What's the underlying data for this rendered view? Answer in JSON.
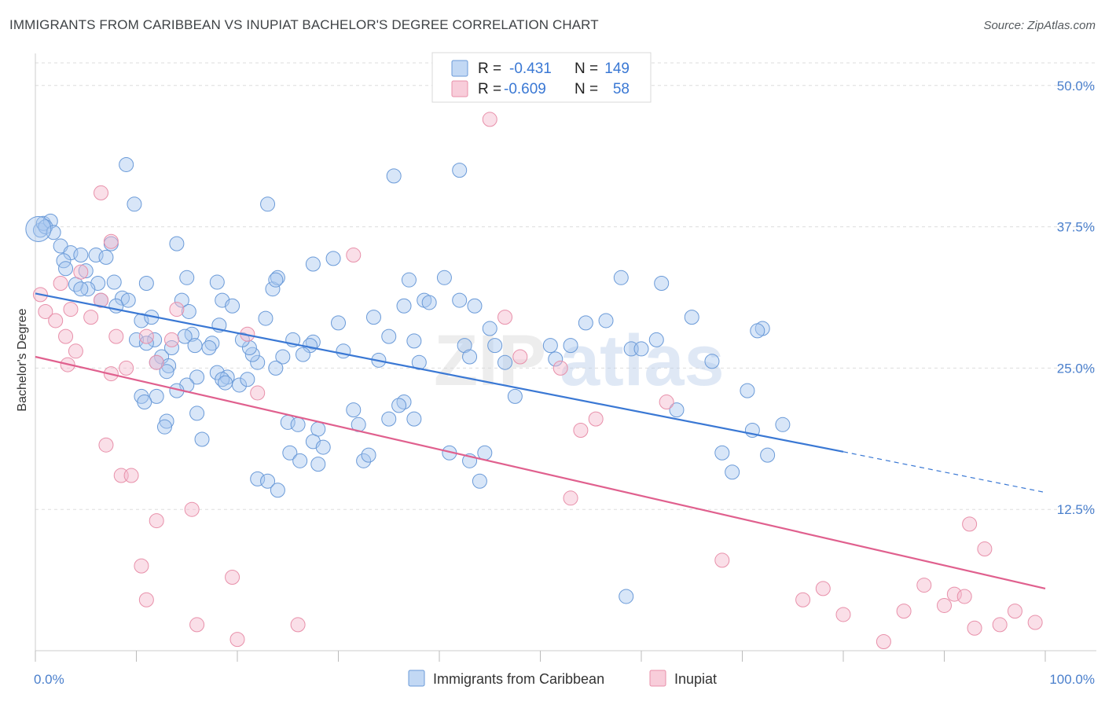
{
  "header": {
    "title": "IMMIGRANTS FROM CARIBBEAN VS INUPIAT BACHELOR'S DEGREE CORRELATION CHART",
    "source": "Source: ZipAtlas.com"
  },
  "legend": {
    "series": [
      {
        "r_label": "R =",
        "r_value": "-0.431",
        "n_label": "N =",
        "n_value": "149",
        "color": "#a8c8f0"
      },
      {
        "r_label": "R =",
        "r_value": "-0.609",
        "n_label": "N =",
        "n_value": "58",
        "color": "#f5b8cb"
      }
    ]
  },
  "bottom_legend": {
    "items": [
      "Immigrants from Caribbean",
      "Inupiat"
    ]
  },
  "watermark": {
    "zip": "ZIP",
    "atlas": "atlas"
  },
  "chart_data": {
    "type": "scatter",
    "xlabel": "",
    "ylabel": "Bachelor's Degree",
    "xlim": [
      0,
      100
    ],
    "ylim": [
      0,
      52
    ],
    "x_tick_labels": [
      {
        "value": 0,
        "label": "0.0%"
      },
      {
        "value": 100,
        "label": "100.0%"
      }
    ],
    "y_ticks": [
      {
        "value": 12.5,
        "label": "12.5%"
      },
      {
        "value": 25.0,
        "label": "25.0%"
      },
      {
        "value": 37.5,
        "label": "37.5%"
      },
      {
        "value": 50.0,
        "label": "50.0%"
      }
    ],
    "grid": true,
    "legend_position": "top-center",
    "series": [
      {
        "name": "Immigrants from Caribbean",
        "color": "#a8c8f0",
        "stroke": "#6a9ad8",
        "trend": {
          "x": [
            0,
            80
          ],
          "y": [
            31.6,
            17.6
          ],
          "dashed_extension_to_x": 100,
          "dashed_end_y": 14.0,
          "color": "#3a78d4"
        },
        "points": [
          [
            0.5,
            37.2
          ],
          [
            0.8,
            37.8
          ],
          [
            1.5,
            38.0
          ],
          [
            1.0,
            37.5
          ],
          [
            1.8,
            37.0
          ],
          [
            2.5,
            35.8
          ],
          [
            3.5,
            35.2
          ],
          [
            4.5,
            35.0
          ],
          [
            2.8,
            34.5
          ],
          [
            3.0,
            33.8
          ],
          [
            5.0,
            33.6
          ],
          [
            6.0,
            35.0
          ],
          [
            7.5,
            36.0
          ],
          [
            9.0,
            43.0
          ],
          [
            9.8,
            39.5
          ],
          [
            7.0,
            34.8
          ],
          [
            7.8,
            32.6
          ],
          [
            6.2,
            32.5
          ],
          [
            5.2,
            32.0
          ],
          [
            4.0,
            32.4
          ],
          [
            4.5,
            32.0
          ],
          [
            6.5,
            31.0
          ],
          [
            8.6,
            31.2
          ],
          [
            9.2,
            31.0
          ],
          [
            8.0,
            30.5
          ],
          [
            11.0,
            32.5
          ],
          [
            10.5,
            29.2
          ],
          [
            11.5,
            29.5
          ],
          [
            12.5,
            26.0
          ],
          [
            11.8,
            27.5
          ],
          [
            10.0,
            27.5
          ],
          [
            11.0,
            27.2
          ],
          [
            14.0,
            36.0
          ],
          [
            15.0,
            33.0
          ],
          [
            14.5,
            31.0
          ],
          [
            15.2,
            30.0
          ],
          [
            15.5,
            28.0
          ],
          [
            14.8,
            27.8
          ],
          [
            15.8,
            27.0
          ],
          [
            13.5,
            26.8
          ],
          [
            12.0,
            25.5
          ],
          [
            13.2,
            25.2
          ],
          [
            13.0,
            24.7
          ],
          [
            18.0,
            32.6
          ],
          [
            18.5,
            31.0
          ],
          [
            19.5,
            30.5
          ],
          [
            18.2,
            28.8
          ],
          [
            17.5,
            27.2
          ],
          [
            17.2,
            26.8
          ],
          [
            16.0,
            24.2
          ],
          [
            15.0,
            23.5
          ],
          [
            14.0,
            23.0
          ],
          [
            12.0,
            22.5
          ],
          [
            10.5,
            22.5
          ],
          [
            10.8,
            22.0
          ],
          [
            16.0,
            21.0
          ],
          [
            13.0,
            20.3
          ],
          [
            12.8,
            19.8
          ],
          [
            16.5,
            18.7
          ],
          [
            18.0,
            24.6
          ],
          [
            19.0,
            24.2
          ],
          [
            18.5,
            24.0
          ],
          [
            18.8,
            23.7
          ],
          [
            20.2,
            23.5
          ],
          [
            21.0,
            24.0
          ],
          [
            22.0,
            25.5
          ],
          [
            21.5,
            26.2
          ],
          [
            21.2,
            26.8
          ],
          [
            20.5,
            27.5
          ],
          [
            22.8,
            29.4
          ],
          [
            23.5,
            32.0
          ],
          [
            24.0,
            33.0
          ],
          [
            23.8,
            32.8
          ],
          [
            27.5,
            34.2
          ],
          [
            23.0,
            39.5
          ],
          [
            25.5,
            27.5
          ],
          [
            27.5,
            27.3
          ],
          [
            27.2,
            27.0
          ],
          [
            26.5,
            26.2
          ],
          [
            24.5,
            26.0
          ],
          [
            23.8,
            25.0
          ],
          [
            25.0,
            20.2
          ],
          [
            26.0,
            20.0
          ],
          [
            28.0,
            19.6
          ],
          [
            27.5,
            18.5
          ],
          [
            28.5,
            18.0
          ],
          [
            25.2,
            17.5
          ],
          [
            26.2,
            16.8
          ],
          [
            28.0,
            16.5
          ],
          [
            22.0,
            15.2
          ],
          [
            23.0,
            15.0
          ],
          [
            24.0,
            14.2
          ],
          [
            29.5,
            34.7
          ],
          [
            30.0,
            29.0
          ],
          [
            30.5,
            26.5
          ],
          [
            31.5,
            21.3
          ],
          [
            32.0,
            20.0
          ],
          [
            32.5,
            16.8
          ],
          [
            33.0,
            17.3
          ],
          [
            34.0,
            25.7
          ],
          [
            33.5,
            29.5
          ],
          [
            35.0,
            27.8
          ],
          [
            36.5,
            30.5
          ],
          [
            38.0,
            25.5
          ],
          [
            37.5,
            27.4
          ],
          [
            37.0,
            32.8
          ],
          [
            38.5,
            31.0
          ],
          [
            39.0,
            30.8
          ],
          [
            40.5,
            33.0
          ],
          [
            42.0,
            31.0
          ],
          [
            42.5,
            27.0
          ],
          [
            43.0,
            26.0
          ],
          [
            43.5,
            30.5
          ],
          [
            45.0,
            28.5
          ],
          [
            45.5,
            27.0
          ],
          [
            46.5,
            25.5
          ],
          [
            47.5,
            22.5
          ],
          [
            36.5,
            22.0
          ],
          [
            36.0,
            21.7
          ],
          [
            35.0,
            20.5
          ],
          [
            37.5,
            20.5
          ],
          [
            43.0,
            16.8
          ],
          [
            44.0,
            15.0
          ],
          [
            44.5,
            17.5
          ],
          [
            41.0,
            17.5
          ],
          [
            42.0,
            42.5
          ],
          [
            35.5,
            42.0
          ],
          [
            51.0,
            27.0
          ],
          [
            51.5,
            25.8
          ],
          [
            53.0,
            27.0
          ],
          [
            54.5,
            29.0
          ],
          [
            56.5,
            29.2
          ],
          [
            58.0,
            33.0
          ],
          [
            59.0,
            26.7
          ],
          [
            60.0,
            26.7
          ],
          [
            62.0,
            32.5
          ],
          [
            61.5,
            27.5
          ],
          [
            63.5,
            21.3
          ],
          [
            65.0,
            29.5
          ],
          [
            67.0,
            25.6
          ],
          [
            72.0,
            28.5
          ],
          [
            71.5,
            28.3
          ],
          [
            74.0,
            20.0
          ],
          [
            70.5,
            23.0
          ],
          [
            72.5,
            17.3
          ],
          [
            68.0,
            17.5
          ],
          [
            69.0,
            15.8
          ],
          [
            71.0,
            19.5
          ],
          [
            58.5,
            4.8
          ]
        ]
      },
      {
        "name": "Inupiat",
        "color": "#f5b8cb",
        "stroke": "#e890aa",
        "trend": {
          "x": [
            0,
            100
          ],
          "y": [
            26.0,
            5.5
          ],
          "color": "#e0608e"
        },
        "points": [
          [
            0.5,
            31.5
          ],
          [
            1.0,
            30.0
          ],
          [
            2.5,
            32.5
          ],
          [
            3.5,
            30.2
          ],
          [
            4.5,
            33.5
          ],
          [
            6.5,
            40.5
          ],
          [
            7.5,
            36.2
          ],
          [
            3.0,
            27.8
          ],
          [
            4.0,
            26.5
          ],
          [
            5.5,
            29.5
          ],
          [
            8.0,
            27.8
          ],
          [
            7.5,
            24.5
          ],
          [
            9.0,
            25.0
          ],
          [
            11.0,
            27.8
          ],
          [
            12.0,
            25.5
          ],
          [
            13.5,
            27.5
          ],
          [
            14.0,
            30.2
          ],
          [
            6.5,
            31.0
          ],
          [
            2.0,
            29.2
          ],
          [
            3.2,
            25.3
          ],
          [
            8.5,
            15.5
          ],
          [
            9.5,
            15.5
          ],
          [
            7.0,
            18.2
          ],
          [
            12.0,
            11.5
          ],
          [
            15.5,
            12.5
          ],
          [
            10.5,
            7.5
          ],
          [
            11.0,
            4.5
          ],
          [
            16.0,
            2.3
          ],
          [
            19.5,
            6.5
          ],
          [
            20.0,
            1.0
          ],
          [
            26.0,
            2.3
          ],
          [
            21.0,
            28.0
          ],
          [
            22.0,
            22.8
          ],
          [
            31.5,
            35.0
          ],
          [
            45.0,
            47.0
          ],
          [
            46.5,
            29.5
          ],
          [
            48.0,
            26.0
          ],
          [
            53.0,
            13.5
          ],
          [
            52.0,
            25.0
          ],
          [
            54.0,
            19.5
          ],
          [
            55.5,
            20.5
          ],
          [
            62.5,
            22.0
          ],
          [
            68.0,
            8.0
          ],
          [
            76.0,
            4.5
          ],
          [
            78.0,
            5.5
          ],
          [
            80.0,
            3.2
          ],
          [
            84.0,
            0.8
          ],
          [
            86.0,
            3.5
          ],
          [
            88.0,
            5.8
          ],
          [
            90.0,
            4.0
          ],
          [
            91.0,
            5.0
          ],
          [
            92.0,
            4.8
          ],
          [
            92.5,
            11.2
          ],
          [
            93.0,
            2.0
          ],
          [
            94.0,
            9.0
          ],
          [
            95.5,
            2.3
          ],
          [
            97.0,
            3.5
          ],
          [
            99.0,
            2.5
          ]
        ]
      }
    ]
  }
}
